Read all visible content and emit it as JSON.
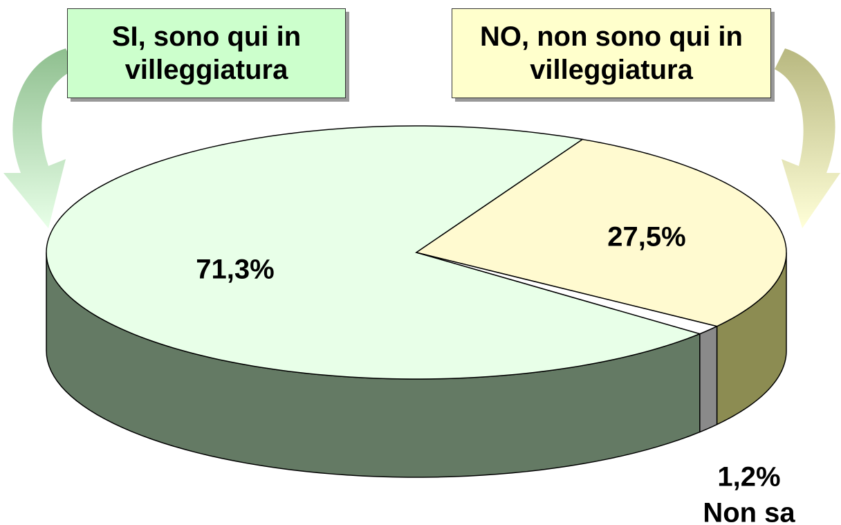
{
  "chart_data": {
    "type": "pie3d",
    "categories": [
      "SI, sono qui in villeggiatura",
      "NO, non sono qui in villeggiatura",
      "Non sa"
    ],
    "values": [
      71.3,
      27.5,
      1.2
    ],
    "value_labels": [
      "71,3%",
      "27,5%",
      "1,2%"
    ],
    "colors": [
      "#e8ffe8",
      "#fffad0",
      "#ffffff"
    ]
  }
}
